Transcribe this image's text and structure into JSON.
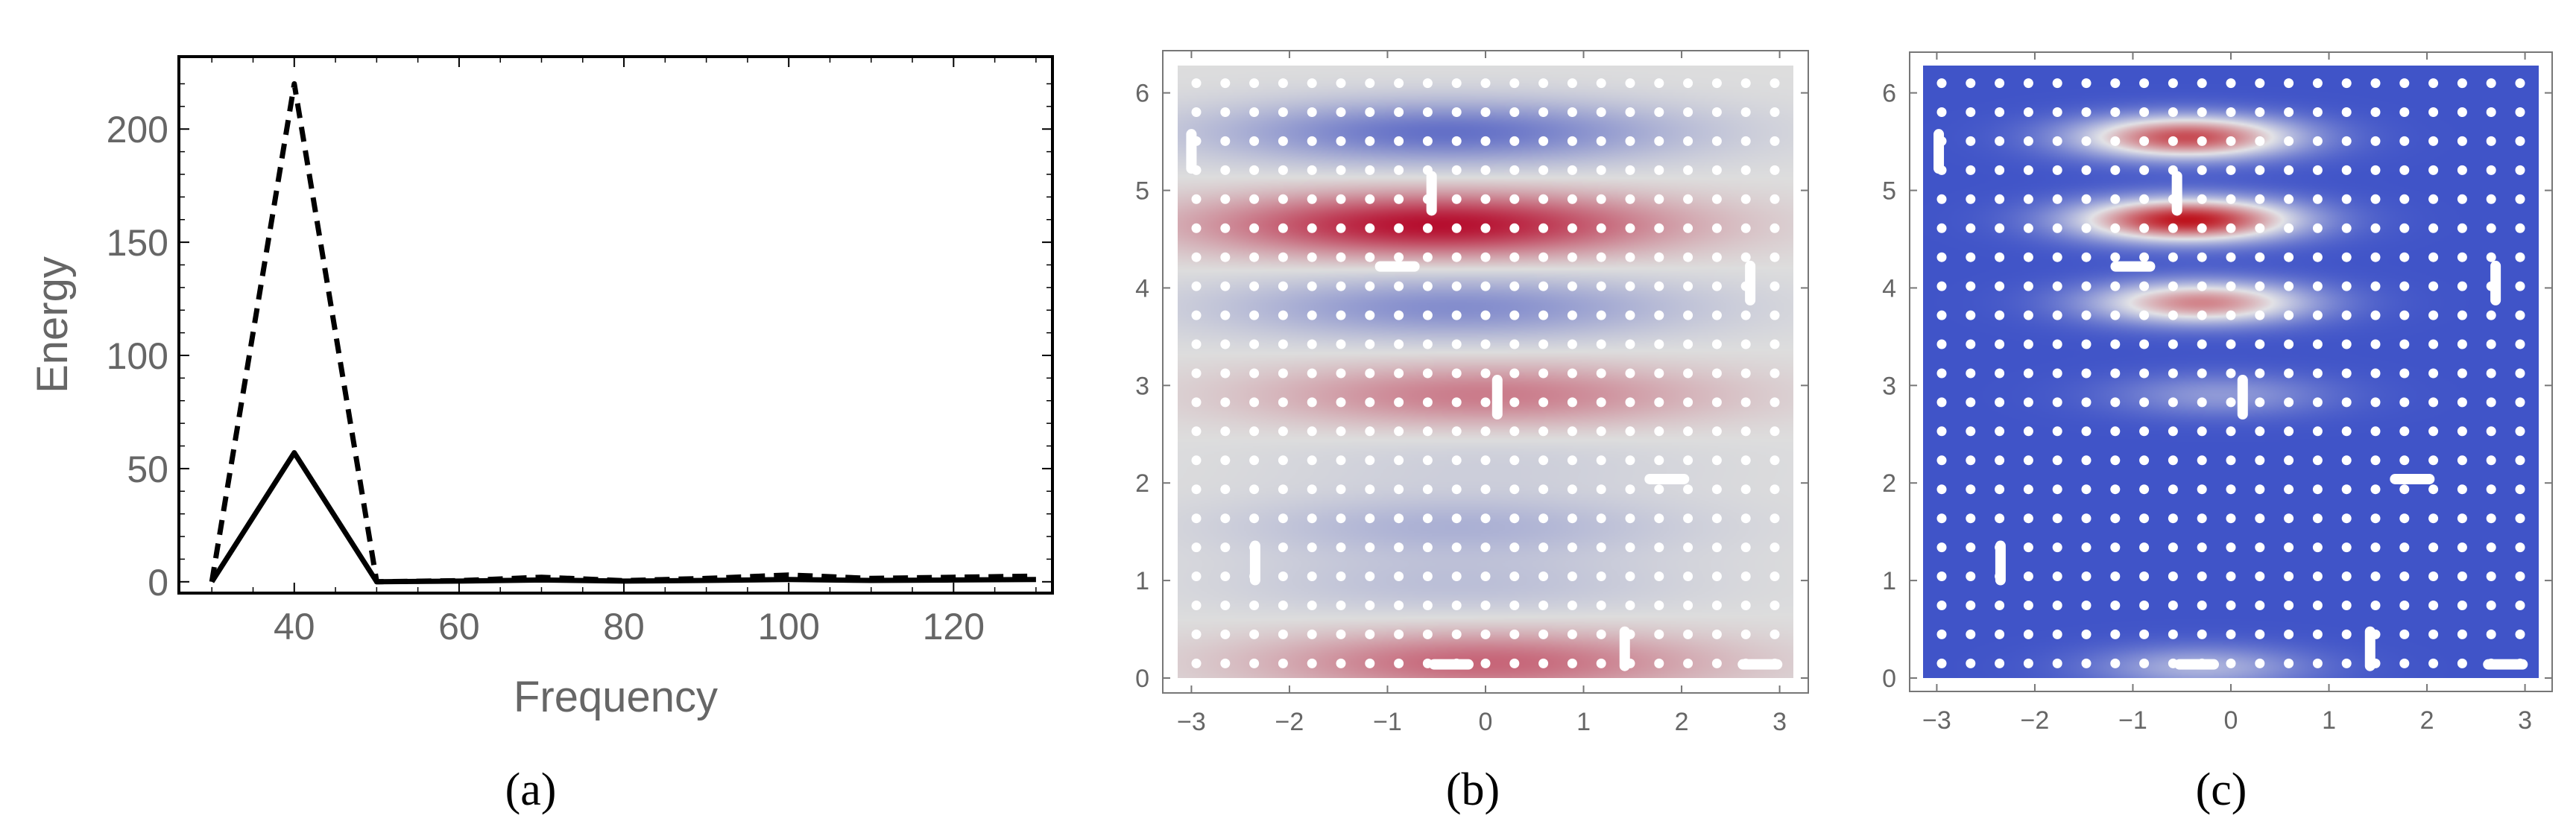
{
  "chart_data": [
    {
      "type": "line",
      "caption": "(a)",
      "xlabel": "Frequency",
      "ylabel": "Energy",
      "xlim": [
        26,
        132
      ],
      "ylim": [
        -5,
        232
      ],
      "xticks": [
        40,
        60,
        80,
        100,
        120
      ],
      "yticks": [
        0,
        50,
        100,
        150,
        200
      ],
      "grid": false,
      "legend": "none",
      "series": [
        {
          "name": "dashed",
          "style": "dashed",
          "x": [
            30,
            40,
            50,
            60,
            70,
            80,
            90,
            100,
            110,
            120,
            130
          ],
          "y": [
            0,
            220,
            0,
            0.5,
            2,
            0.5,
            1.5,
            3,
            1.5,
            2,
            2.5
          ]
        },
        {
          "name": "solid",
          "style": "solid",
          "x": [
            30,
            40,
            50,
            60,
            70,
            80,
            90,
            100,
            110,
            120,
            130
          ],
          "y": [
            0,
            57,
            0,
            0.3,
            0.8,
            0.3,
            0.6,
            1.0,
            0.6,
            0.8,
            1.0
          ]
        }
      ]
    },
    {
      "type": "heatmap",
      "caption": "(b)",
      "colormap": "diverging-blue-red",
      "xlim": [
        -3.14,
        3.14
      ],
      "ylim": [
        0,
        6.28
      ],
      "xticks": [
        -3,
        -2,
        -1,
        0,
        1,
        2,
        3
      ],
      "yticks": [
        0,
        1,
        2,
        3,
        4,
        5,
        6
      ],
      "bands": [
        {
          "y": 0.15,
          "value": 0.55,
          "xcenter": 0.0
        },
        {
          "y": 0.95,
          "value": -0.2,
          "xcenter": -0.3
        },
        {
          "y": 1.55,
          "value": -0.3,
          "xcenter": -0.3
        },
        {
          "y": 2.2,
          "value": -0.1,
          "xcenter": 0.0
        },
        {
          "y": 2.9,
          "value": 0.45,
          "xcenter": 0.0
        },
        {
          "y": 3.8,
          "value": -0.55,
          "xcenter": -0.3
        },
        {
          "y": 4.65,
          "value": 0.95,
          "xcenter": -0.5
        },
        {
          "y": 5.6,
          "value": -0.75,
          "xcenter": -0.4
        }
      ],
      "defects": [
        {
          "x": -3.0,
          "y": 5.4,
          "orient": "v"
        },
        {
          "x": -0.55,
          "y": 4.97,
          "orient": "v"
        },
        {
          "x": -0.9,
          "y": 4.22,
          "orient": "h"
        },
        {
          "x": 2.7,
          "y": 4.05,
          "orient": "v"
        },
        {
          "x": 0.12,
          "y": 2.88,
          "orient": "v"
        },
        {
          "x": 1.85,
          "y": 2.04,
          "orient": "h"
        },
        {
          "x": -2.35,
          "y": 1.18,
          "orient": "v"
        },
        {
          "x": -0.35,
          "y": 0.14,
          "orient": "h"
        },
        {
          "x": 1.42,
          "y": 0.3,
          "orient": "v"
        },
        {
          "x": 2.8,
          "y": 0.14,
          "orient": "h"
        }
      ]
    },
    {
      "type": "heatmap",
      "caption": "(c)",
      "colormap": "blue-white-red",
      "xlim": [
        -3.14,
        3.14
      ],
      "ylim": [
        0,
        6.28
      ],
      "xticks": [
        -3,
        -2,
        -1,
        0,
        1,
        2,
        3
      ],
      "yticks": [
        0,
        1,
        2,
        3,
        4,
        5,
        6
      ],
      "base_value": 0.0,
      "bands": [
        {
          "y": 5.55,
          "value": 0.85,
          "xcenter": -0.45
        },
        {
          "y": 4.7,
          "value": 1.0,
          "xcenter": -0.45
        },
        {
          "y": 3.85,
          "value": 0.7,
          "xcenter": -0.3
        },
        {
          "y": 2.9,
          "value": 0.22,
          "xcenter": -0.1
        },
        {
          "y": 0.1,
          "value": 0.3,
          "xcenter": -0.3
        }
      ],
      "defects": [
        {
          "x": -2.98,
          "y": 5.4,
          "orient": "v"
        },
        {
          "x": -0.55,
          "y": 4.97,
          "orient": "v"
        },
        {
          "x": -1.0,
          "y": 4.22,
          "orient": "h"
        },
        {
          "x": 2.7,
          "y": 4.05,
          "orient": "v"
        },
        {
          "x": 0.12,
          "y": 2.88,
          "orient": "v"
        },
        {
          "x": 1.85,
          "y": 2.04,
          "orient": "h"
        },
        {
          "x": -2.35,
          "y": 1.18,
          "orient": "v"
        },
        {
          "x": -0.35,
          "y": 0.14,
          "orient": "h"
        },
        {
          "x": 1.42,
          "y": 0.3,
          "orient": "v"
        },
        {
          "x": 2.8,
          "y": 0.14,
          "orient": "h"
        }
      ]
    }
  ],
  "colors": {
    "axis_text": "#666666",
    "frame": "#000000",
    "line": "#000000",
    "dots": "#ffffff",
    "neutral": "#dcdcdc",
    "blue": "#3a4cc0",
    "red": "#b50b25",
    "deep_blue": "#4054c8"
  }
}
